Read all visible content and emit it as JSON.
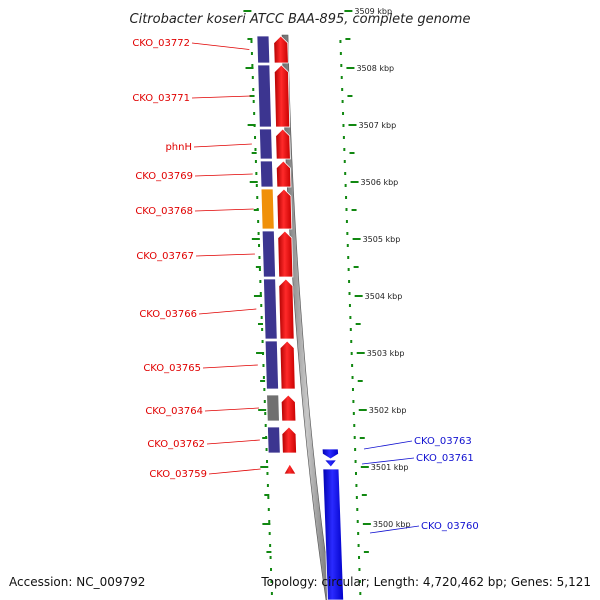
{
  "title": "Citrobacter koseri ATCC BAA-895, complete genome",
  "footer": {
    "accession": "Accession: NC_009792",
    "summary": "Topology: circular; Length: 4,720,462 bp; Genes: 5,121"
  },
  "ticks": [
    {
      "label": "3509 kbp",
      "kbp": 3509
    },
    {
      "label": "3508 kbp",
      "kbp": 3508
    },
    {
      "label": "3507 kbp",
      "kbp": 3507
    },
    {
      "label": "3506 kbp",
      "kbp": 3506
    },
    {
      "label": "3505 kbp",
      "kbp": 3505
    },
    {
      "label": "3504 kbp",
      "kbp": 3504
    },
    {
      "label": "3503 kbp",
      "kbp": 3503
    },
    {
      "label": "3502 kbp",
      "kbp": 3502
    },
    {
      "label": "3501 kbp",
      "kbp": 3501
    },
    {
      "label": "3500 kbp",
      "kbp": 3500
    }
  ],
  "reverse_genes": [
    {
      "label": "CKO_03772",
      "cog_color": "#3c3590"
    },
    {
      "label": "CKO_03771",
      "cog_color": "#3c3590"
    },
    {
      "label": "phnH",
      "cog_color": "#3c3590"
    },
    {
      "label": "CKO_03769",
      "cog_color": "#3c3590"
    },
    {
      "label": "CKO_03768",
      "cog_color": "#f0900a"
    },
    {
      "label": "CKO_03767",
      "cog_color": "#3c3590"
    },
    {
      "label": "CKO_03766",
      "cog_color": "#3c3590"
    },
    {
      "label": "CKO_03765",
      "cog_color": "#3c3590"
    },
    {
      "label": "CKO_03764",
      "cog_color": "#707070"
    },
    {
      "label": "CKO_03762",
      "cog_color": "#3c3590"
    },
    {
      "label": "CKO_03759",
      "cog_color": ""
    }
  ],
  "forward_genes": [
    {
      "label": "CKO_03763"
    },
    {
      "label": "CKO_03761"
    },
    {
      "label": "CKO_03760"
    }
  ],
  "colors": {
    "reverse_strand": "#ff0000",
    "forward_strand": "#0000ff",
    "backbone": "#808080",
    "tick": "#118811",
    "reverse_label": "#e00000",
    "forward_label": "#1010d0"
  }
}
